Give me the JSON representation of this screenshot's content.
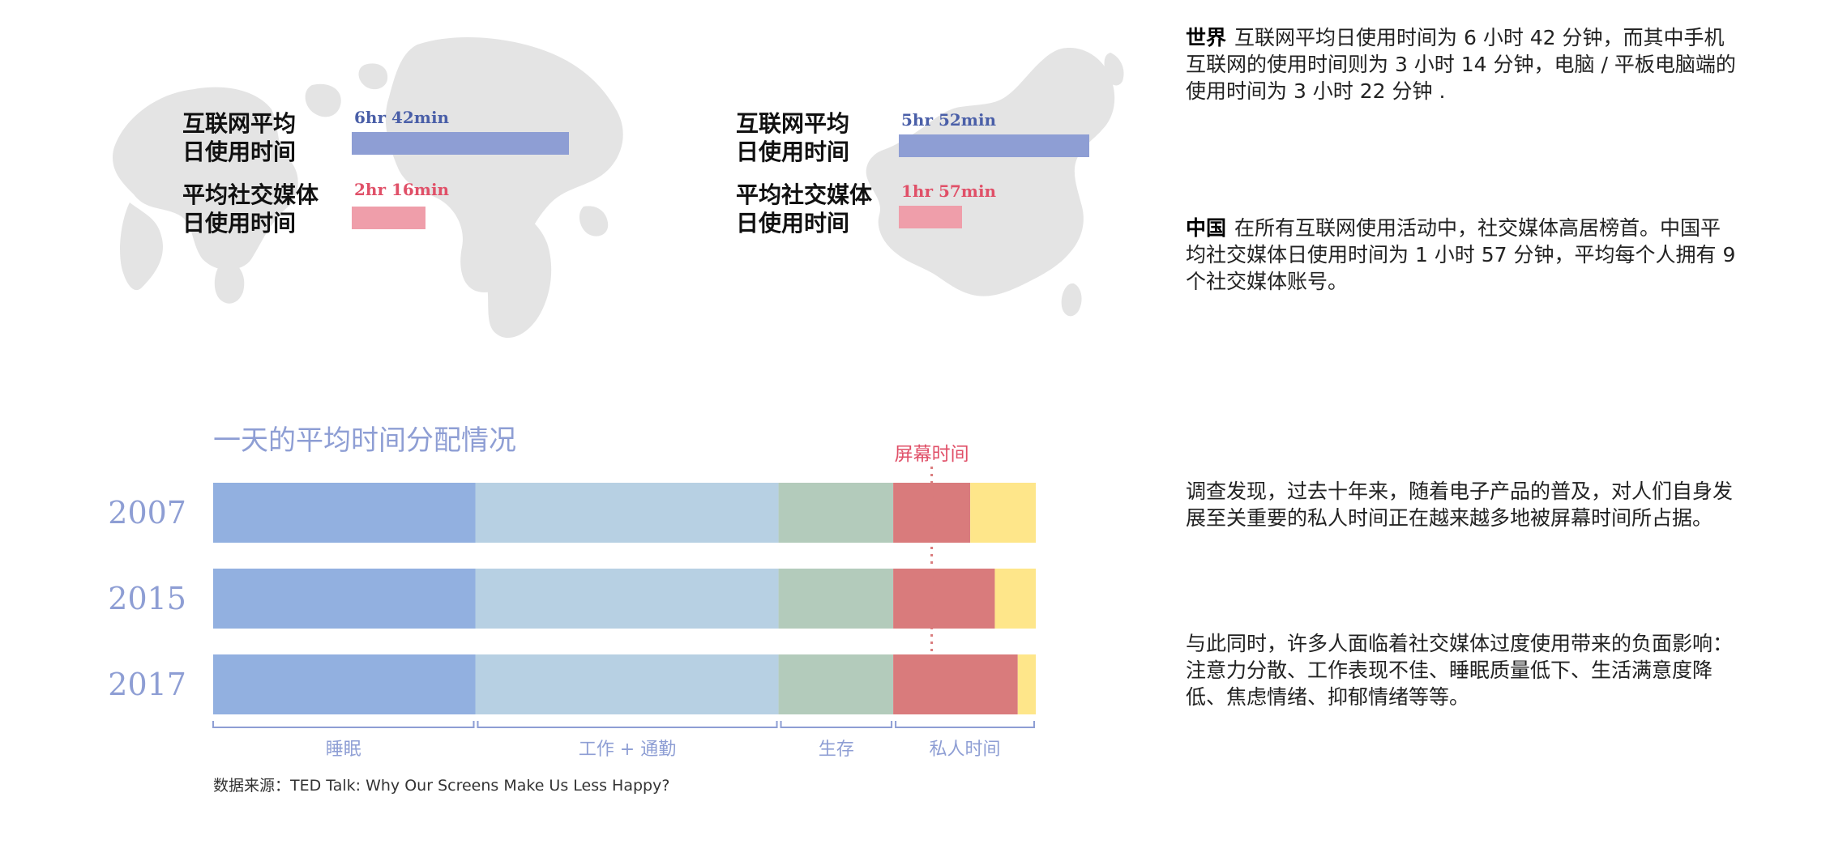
{
  "world_panel": {
    "label_internet": "互联网平均\n日使用时间",
    "label_social": "平均社交媒体\n日使用时间",
    "internet_time_text": "6hr 42min",
    "social_time_text": "2hr 16min",
    "internet_hours": 6.7,
    "social_hours": 2.267
  },
  "china_panel": {
    "label_internet": "互联网平均\n日使用时间",
    "label_social": "平均社交媒体\n日使用时间",
    "internet_time_text": "5hr 52min",
    "social_time_text": "1hr 57min",
    "internet_hours": 5.867,
    "social_hours": 1.95
  },
  "paragraphs": [
    {
      "lead": "世界",
      "text": "互联网平均日使用时间为 6 小时 42 分钟，而其中手机互联网的使用时间则为 3 小时 14 分钟，电脑 / 平板电脑端的使用时间为 3 小时 22 分钟 ."
    },
    {
      "lead": "中国",
      "text": "在所有互联网使用活动中，社交媒体高居榜首。中国平均社交媒体日使用时间为 1 小时 57 分钟，平均每个人拥有 9 个社交媒体账号。"
    },
    {
      "lead": "",
      "text": "调查发现，过去十年来，随着电子产品的普及，对人们自身发展至关重要的私人时间正在越来越多地被屏幕时间所占据。"
    },
    {
      "lead": "",
      "text": "与此同时，许多人面临着社交媒体过度使用带来的负面影响：注意力分散、工作表现不佳、睡眠质量低下、生活满意度降低、焦虑情绪、抑郁情绪等等。"
    }
  ],
  "colors": {
    "sleep": "#92b0e0",
    "work": "#b7d0e3",
    "survival": "#b3cbbb",
    "screen": "#d97b7c",
    "private_rest": "#fee68a",
    "title": "#8e9ed4",
    "screen_label": "#e05068",
    "map": "#e4e4e4"
  },
  "chart_data": {
    "type": "bar",
    "orientation": "horizontal",
    "stacked": true,
    "title": "一天的平均时间分配情况",
    "categories": [
      "2007",
      "2015",
      "2017"
    ],
    "series": [
      {
        "key": "sleep",
        "values": [
          8.0,
          8.0,
          8.0
        ]
      },
      {
        "key": "work",
        "values": [
          9.25,
          9.25,
          9.25
        ]
      },
      {
        "key": "survival",
        "values": [
          3.5,
          3.5,
          3.5
        ]
      },
      {
        "key": "screen",
        "values": [
          2.35,
          3.1,
          3.8
        ]
      },
      {
        "key": "private_rest",
        "values": [
          2.0,
          1.25,
          0.55
        ]
      }
    ],
    "xlim": [
      0,
      25.1
    ],
    "group_labels": [
      {
        "label": "睡眠",
        "from": 0,
        "to": 8.0
      },
      {
        "label": "工作 + 通勤",
        "from": 8.0,
        "to": 17.25
      },
      {
        "label": "生存",
        "from": 17.25,
        "to": 20.75
      },
      {
        "label": "私人时间",
        "from": 20.75,
        "to": 25.1
      }
    ],
    "annotation": "屏幕时间",
    "source": "数据来源：TED Talk: Why Our Screens Make Us Less Happy?"
  }
}
